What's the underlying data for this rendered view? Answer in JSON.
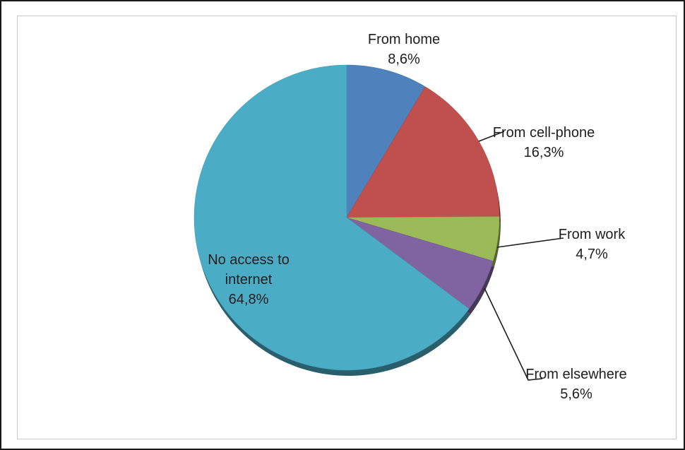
{
  "chart_data": {
    "type": "pie",
    "title": "",
    "slices": [
      {
        "label": "From home",
        "value": 8.6,
        "value_text": "8,6%",
        "color": "#4f81bd"
      },
      {
        "label": "From cell-phone",
        "value": 16.3,
        "value_text": "16,3%",
        "color": "#c0504d"
      },
      {
        "label": "From work",
        "value": 4.7,
        "value_text": "4,7%",
        "color": "#9bbb59"
      },
      {
        "label": "From elsewhere",
        "value": 5.6,
        "value_text": "5,6%",
        "color": "#8064a2"
      },
      {
        "label": "No access to internet",
        "value": 64.8,
        "value_text": "64,8%",
        "color": "#4bacc6"
      }
    ],
    "start": "12 o'clock",
    "direction": "clockwise",
    "legend": "none",
    "style": "3d-shadow"
  }
}
